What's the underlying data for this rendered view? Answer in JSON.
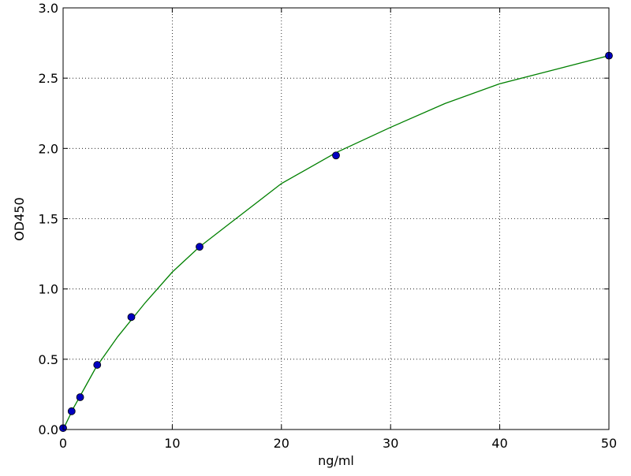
{
  "chart_data": {
    "type": "scatter",
    "xlabel": "ng/ml",
    "ylabel": "OD450",
    "xlim": [
      0,
      50
    ],
    "ylim": [
      0,
      3
    ],
    "xticks": [
      0,
      10,
      20,
      30,
      40,
      50
    ],
    "yticks": [
      {
        "value": 0,
        "label": "0.0"
      },
      0.5,
      {
        "value": 1,
        "label": "1.0"
      },
      1.5,
      {
        "value": 2,
        "label": "2.0"
      },
      2.5,
      {
        "value": 3,
        "label": "3.0"
      }
    ],
    "grid": true,
    "series": [
      {
        "type": "line",
        "color": "#008000",
        "x": [
          0,
          1,
          2,
          3,
          5,
          7.5,
          10,
          12.5,
          15,
          20,
          25,
          30,
          35,
          40,
          45,
          50
        ],
        "values": [
          0,
          0.16,
          0.3,
          0.44,
          0.66,
          0.9,
          1.12,
          1.3,
          1.45,
          1.75,
          1.97,
          2.15,
          2.32,
          2.46,
          2.56,
          2.66
        ]
      },
      {
        "type": "scatter",
        "color": "#0000bf",
        "x": [
          0,
          0.78,
          1.56,
          3.125,
          6.25,
          12.5,
          25,
          50
        ],
        "values": [
          0.01,
          0.13,
          0.23,
          0.46,
          0.8,
          1.3,
          1.95,
          2.66
        ]
      }
    ]
  }
}
